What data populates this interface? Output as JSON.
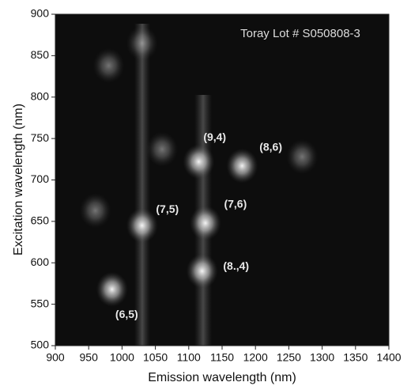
{
  "chart_data": {
    "type": "heatmap",
    "title": "Toray Lot # S050808-3",
    "xlabel": "Emission wavelength (nm)",
    "ylabel": "Excitation wavelength (nm)",
    "xlim": [
      900,
      1400
    ],
    "ylim": [
      500,
      900
    ],
    "xticks": [
      900,
      950,
      1000,
      1050,
      1100,
      1150,
      1200,
      1250,
      1300,
      1350,
      1400
    ],
    "yticks": [
      500,
      550,
      600,
      650,
      700,
      750,
      800,
      850,
      900
    ],
    "spots": {
      "x": [
        1030,
        1125,
        1120,
        1115,
        1180,
        985,
        1030,
        980,
        1060,
        960,
        1270
      ],
      "y": [
        645,
        648,
        590,
        722,
        717,
        568,
        865,
        838,
        737,
        663,
        728
      ]
    },
    "annotations": [
      {
        "text": "(9,4)",
        "x": 1139,
        "y": 751
      },
      {
        "text": "(8,6)",
        "x": 1223,
        "y": 739
      },
      {
        "text": "(7,5)",
        "x": 1068,
        "y": 664
      },
      {
        "text": "(7,6)",
        "x": 1170,
        "y": 670
      },
      {
        "text": "(8.,4)",
        "x": 1171,
        "y": 595
      },
      {
        "text": "(6,5)",
        "x": 1007,
        "y": 537
      }
    ]
  }
}
